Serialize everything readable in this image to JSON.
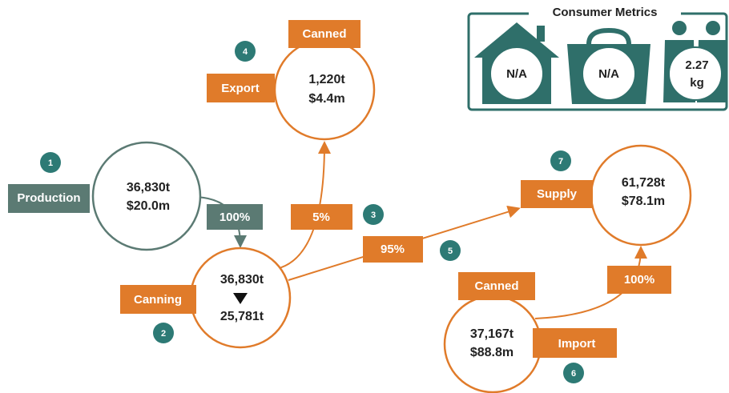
{
  "nodes": [
    {
      "badge": "1",
      "label": "Production",
      "lines": [
        "36,830t",
        "$20.0m"
      ]
    },
    {
      "badge": "2",
      "label": "Canning",
      "lines": [
        "36,830t",
        "25,781t"
      ]
    },
    {
      "badge": "4",
      "label": "Export",
      "tag": "Canned",
      "lines": [
        "1,220t",
        "$4.4m"
      ]
    },
    {
      "badge": "7",
      "label": "Supply",
      "lines": [
        "61,728t",
        "$78.1m"
      ]
    },
    {
      "badge": "6",
      "label": "Import",
      "tag": "Canned",
      "lines": [
        "37,167t",
        "$88.8m"
      ]
    }
  ],
  "edges": [
    {
      "label": "100%"
    },
    {
      "label": "5%",
      "badge": "3"
    },
    {
      "label": "95%",
      "badge": "5"
    },
    {
      "label": "100%"
    }
  ],
  "consumer_metrics": {
    "title": "Consumer Metrics",
    "items": [
      {
        "value": "N/A"
      },
      {
        "value": "N/A"
      },
      {
        "value": "2.27",
        "unit": "kg"
      }
    ]
  }
}
